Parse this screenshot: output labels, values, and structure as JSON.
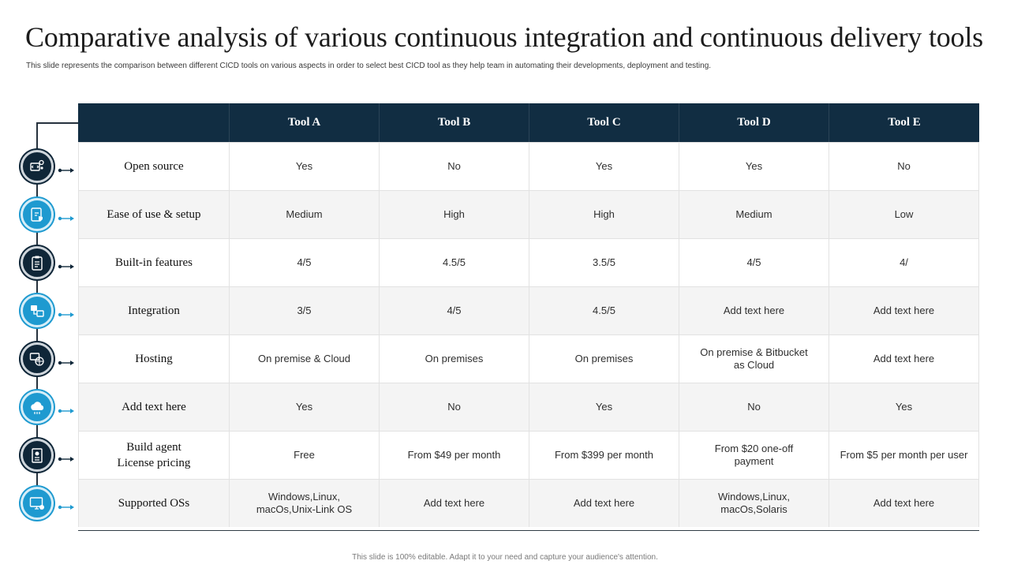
{
  "title": "Comparative analysis of various continuous integration and continuous delivery tools",
  "subtitle": "This slide represents the comparison between different CICD tools on various aspects in order to select best CICD  tool as they help team in automating their developments, deployment and testing.",
  "footer": "This slide is 100% editable.  Adapt it to your need and capture your audience's attention.",
  "colors": {
    "header": "#112d42",
    "dark_circle": "#0f2638",
    "blue_circle": "#1e9ad0"
  },
  "table": {
    "headers": [
      "",
      "Tool A",
      "Tool B",
      "Tool C",
      "Tool D",
      "Tool E"
    ],
    "rows": [
      {
        "label": "Open source",
        "icon": "code-settings-icon",
        "cells": [
          "Yes",
          "No",
          "Yes",
          "Yes",
          "No"
        ]
      },
      {
        "label": "Ease of use & setup",
        "icon": "touch-setup-icon",
        "cells": [
          "Medium",
          "High",
          "High",
          "Medium",
          "Low"
        ]
      },
      {
        "label": "Built-in  features",
        "icon": "clipboard-icon",
        "cells": [
          "4/5",
          "4.5/5",
          "3.5/5",
          "4/5",
          "4/"
        ]
      },
      {
        "label": "Integration",
        "icon": "integration-icon",
        "cells": [
          "3/5",
          "4/5",
          "4.5/5",
          "Add text here",
          "Add text here"
        ]
      },
      {
        "label": "Hosting",
        "icon": "hosting-globe-icon",
        "cells": [
          "On premise & Cloud",
          "On premises",
          "On premises",
          "On premise & Bitbucket as Cloud",
          "Add text here"
        ]
      },
      {
        "label": "Add text  here",
        "icon": "cloud-icon",
        "cells": [
          "Yes",
          "No",
          "Yes",
          "No",
          "Yes"
        ]
      },
      {
        "label": "Build  agent License  pricing",
        "icon": "license-document-icon",
        "cells": [
          "Free",
          "From $49  per month",
          "From $399  per month",
          "From $20 one-off  payment",
          "From $5 per month per user"
        ]
      },
      {
        "label": "Supported OSs",
        "icon": "monitor-settings-icon",
        "cells": [
          "Windows,Linux, macOs,Unix-Link OS",
          "Add text here",
          "Add text here",
          "Windows,Linux, macOs,Solaris",
          "Add text here"
        ]
      }
    ]
  }
}
